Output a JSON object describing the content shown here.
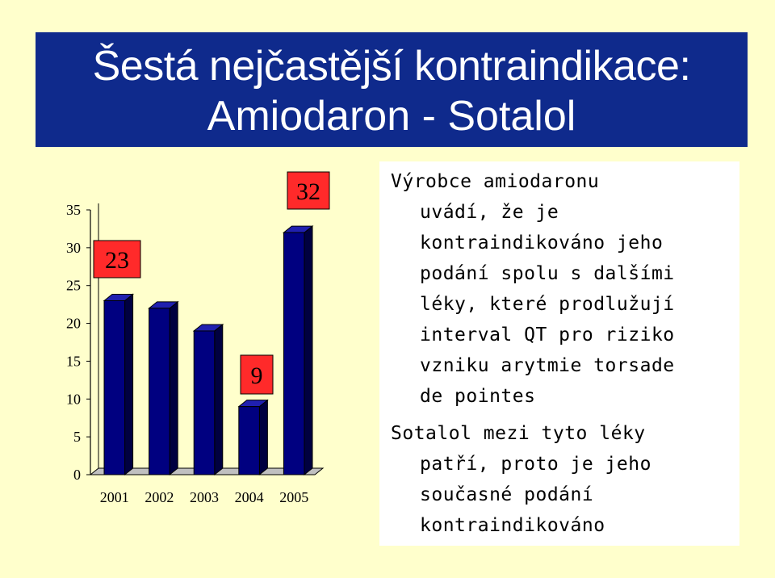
{
  "title": {
    "line1": "Šestá nejčastější kontraindikace:",
    "line2": "Amiodaron - Sotalol"
  },
  "colors": {
    "title_bg": "#0F2A8C",
    "page_bg": "#FFFFCC",
    "bar_front": "#000080",
    "bar_top": "#2020B0",
    "bar_side": "#000040",
    "label_box": "#FF2A2A",
    "floor": "#808080"
  },
  "chart_data": {
    "type": "bar",
    "categories": [
      "2001",
      "2002",
      "2003",
      "2004",
      "2005"
    ],
    "values": [
      23,
      22,
      19,
      9,
      32
    ],
    "ylim": [
      0,
      35
    ],
    "yticks": [
      "0",
      "5",
      "10",
      "15",
      "20",
      "25",
      "30",
      "35"
    ],
    "annotations": [
      {
        "text": "23",
        "category": "2001"
      },
      {
        "text": "9",
        "category": "2004"
      },
      {
        "text": "32",
        "category": "2005"
      }
    ],
    "grid": false,
    "three_d": true
  },
  "paragraph1": {
    "lines": [
      "Výrobce amiodaronu",
      "uvádí, že je",
      "kontraindikováno jeho",
      "podání spolu s dalšími",
      "léky, které prodlužují",
      "interval QT pro riziko",
      "vzniku arytmie torsade",
      "de pointes"
    ]
  },
  "paragraph2": {
    "lines": [
      "Sotalol mezi tyto léky",
      "patří, proto je jeho",
      "současné podání",
      "kontraindikováno"
    ]
  }
}
